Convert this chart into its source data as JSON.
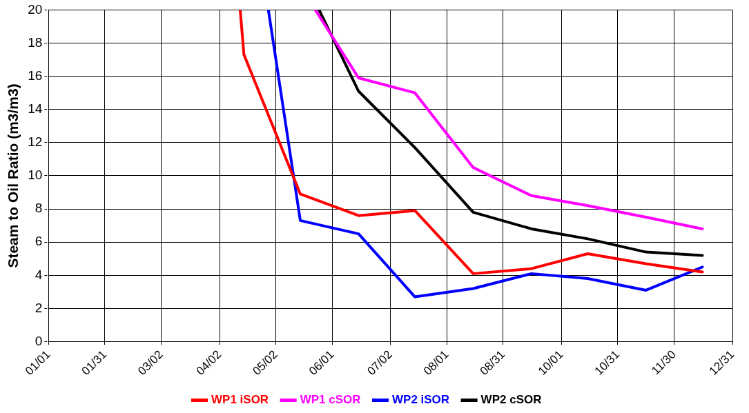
{
  "chart_data": {
    "type": "line",
    "ylabel": "Steam to Oil Ratio (m3/m3)",
    "xlim": [
      "--01-01",
      "--12-31"
    ],
    "xticks": [
      {
        "value": "--01-01",
        "label": "01/01"
      },
      {
        "value": "--01-31",
        "label": "01/31"
      },
      {
        "value": "--03-02",
        "label": "03/02"
      },
      {
        "value": "--04-02",
        "label": "04/02"
      },
      {
        "value": "--05-02",
        "label": "05/02"
      },
      {
        "value": "--06-01",
        "label": "06/01"
      },
      {
        "value": "--07-02",
        "label": "07/02"
      },
      {
        "value": "--08-01",
        "label": "08/01"
      },
      {
        "value": "--08-31",
        "label": "08/31"
      },
      {
        "value": "--10-01",
        "label": "10/01"
      },
      {
        "value": "--10-31",
        "label": "10/31"
      },
      {
        "value": "--11-30",
        "label": "11/30"
      },
      {
        "value": "--12-31",
        "label": "12/31"
      }
    ],
    "ylim": [
      0,
      20
    ],
    "yticks": [
      0,
      2,
      4,
      6,
      8,
      10,
      12,
      14,
      16,
      18,
      20
    ],
    "grid": true,
    "legend": "bottom",
    "marker": "none",
    "line_style": "solid",
    "series": [
      {
        "name": "WP1 iSOR",
        "color": "#ff0000",
        "x": [
          "--04-13",
          "--04-15",
          "--05-15",
          "--06-15",
          "--07-15",
          "--08-15",
          "--09-15",
          "--10-15",
          "--11-15",
          "--12-15"
        ],
        "values": [
          20,
          17.3,
          8.9,
          7.6,
          7.9,
          4.1,
          4.4,
          5.3,
          4.7,
          4.2
        ]
      },
      {
        "name": "WP1 cSOR",
        "color": "#ff00ff",
        "x": [
          "--05-23",
          "--06-15",
          "--07-15",
          "--08-15",
          "--09-15",
          "--10-15",
          "--11-15",
          "--12-15"
        ],
        "values": [
          20,
          15.9,
          15.0,
          10.5,
          8.8,
          8.2,
          7.5,
          6.8
        ]
      },
      {
        "name": "WP2 iSOR",
        "color": "#0000ff",
        "x": [
          "--04-28",
          "--05-15",
          "--06-15",
          "--07-15",
          "--08-15",
          "--09-15",
          "--10-15",
          "--11-15",
          "--12-15"
        ],
        "values": [
          20,
          7.3,
          6.5,
          2.7,
          3.2,
          4.1,
          3.8,
          3.1,
          4.5
        ]
      },
      {
        "name": "WP2 cSOR",
        "color": "#000000",
        "x": [
          "--05-25",
          "--06-15",
          "--07-15",
          "--08-15",
          "--09-15",
          "--10-15",
          "--11-15",
          "--12-15"
        ],
        "values": [
          20,
          15.1,
          11.7,
          7.8,
          6.8,
          6.2,
          5.4,
          5.2
        ]
      }
    ]
  }
}
